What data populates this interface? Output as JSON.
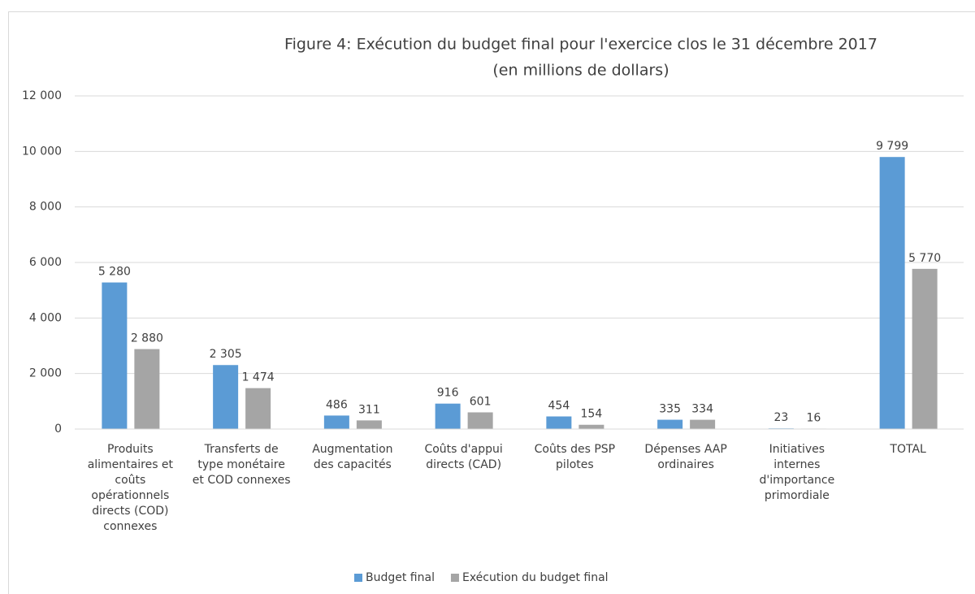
{
  "chart_data": {
    "type": "bar",
    "title": "Figure 4: Exécution du budget final pour l'exercice clos le 31 décembre 2017",
    "subtitle": "(en millions de dollars)",
    "categories": [
      "Produits alimentaires et coûts opérationnels directs (COD) connexes",
      "Transferts de type monétaire et COD connexes",
      "Augmentation des capacités",
      "Coûts d'appui directs (CAD)",
      "Coûts des PSP pilotes",
      "Dépenses AAP ordinaires",
      "Initiatives internes d'importance primordiale",
      "TOTAL"
    ],
    "series": [
      {
        "name": "Budget final",
        "color": "#5b9bd5",
        "values": [
          5280,
          2305,
          486,
          916,
          454,
          335,
          23,
          9799
        ],
        "value_labels": [
          "5 280",
          "2 305",
          "486",
          "916",
          "454",
          "335",
          "23",
          "9 799"
        ]
      },
      {
        "name": "Exécution du budget final",
        "color": "#a5a5a5",
        "values": [
          2880,
          1474,
          311,
          601,
          154,
          334,
          16,
          5770
        ],
        "value_labels": [
          "2 880",
          "1 474",
          "311",
          "601",
          "154",
          "334",
          "16",
          "5 770"
        ]
      }
    ],
    "ylim": [
      0,
      12000
    ],
    "yticks": [
      0,
      {
        "value": 2000,
        "label": "2 000"
      },
      {
        "value": 4000,
        "label": "4 000"
      },
      {
        "value": 6000,
        "label": "6 000"
      },
      {
        "value": 8000,
        "label": "8 000"
      },
      {
        "value": 10000,
        "label": "10 000"
      },
      {
        "value": 12000,
        "label": "12 000"
      }
    ],
    "grid": true,
    "legend": "bottom"
  }
}
